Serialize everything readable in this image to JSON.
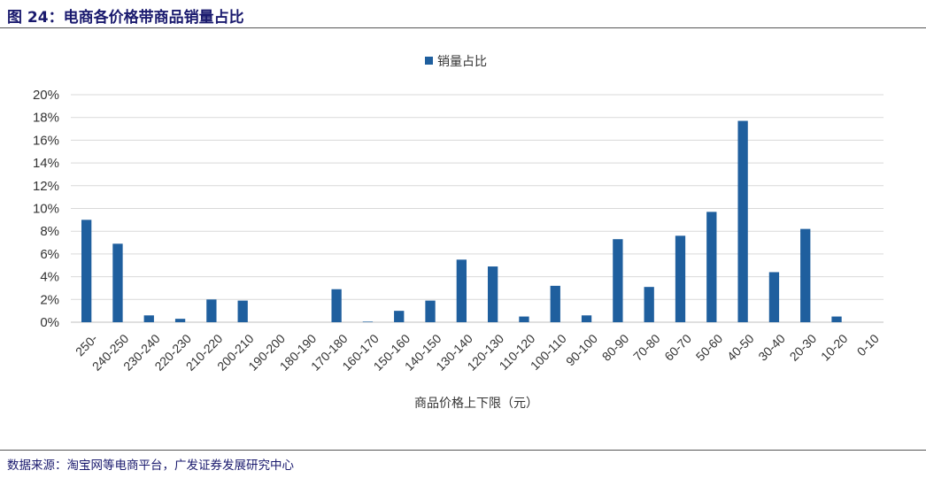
{
  "figure_title": "图 24：电商各价格带商品销量占比",
  "source_note": "数据来源：淘宝网等电商平台，广发证券发展研究中心",
  "chart_data": {
    "type": "bar",
    "title": "",
    "legend": [
      "销量占比"
    ],
    "legend_position": "top",
    "xlabel": "商品价格上下限（元）",
    "ylabel": "",
    "ylim": [
      0,
      20
    ],
    "y_ticks": [
      "0%",
      "2%",
      "4%",
      "6%",
      "8%",
      "10%",
      "12%",
      "14%",
      "16%",
      "18%",
      "20%"
    ],
    "grid": true,
    "bar_color": "#1f5f9e",
    "categories": [
      "250-",
      "240-250",
      "230-240",
      "220-230",
      "210-220",
      "200-210",
      "190-200",
      "180-190",
      "170-180",
      "160-170",
      "150-160",
      "140-150",
      "130-140",
      "120-130",
      "110-120",
      "100-110",
      "90-100",
      "80-90",
      "70-80",
      "60-70",
      "50-60",
      "40-50",
      "30-40",
      "20-30",
      "10-20",
      "0-10"
    ],
    "series": [
      {
        "name": "销量占比",
        "unit": "%",
        "values": [
          9.0,
          6.9,
          0.6,
          0.3,
          2.0,
          1.9,
          0.0,
          0.0,
          2.9,
          0.05,
          1.0,
          1.9,
          5.5,
          4.9,
          0.5,
          3.2,
          0.6,
          7.3,
          3.1,
          7.6,
          9.7,
          17.7,
          4.4,
          8.2,
          0.5,
          0.0
        ]
      }
    ]
  }
}
